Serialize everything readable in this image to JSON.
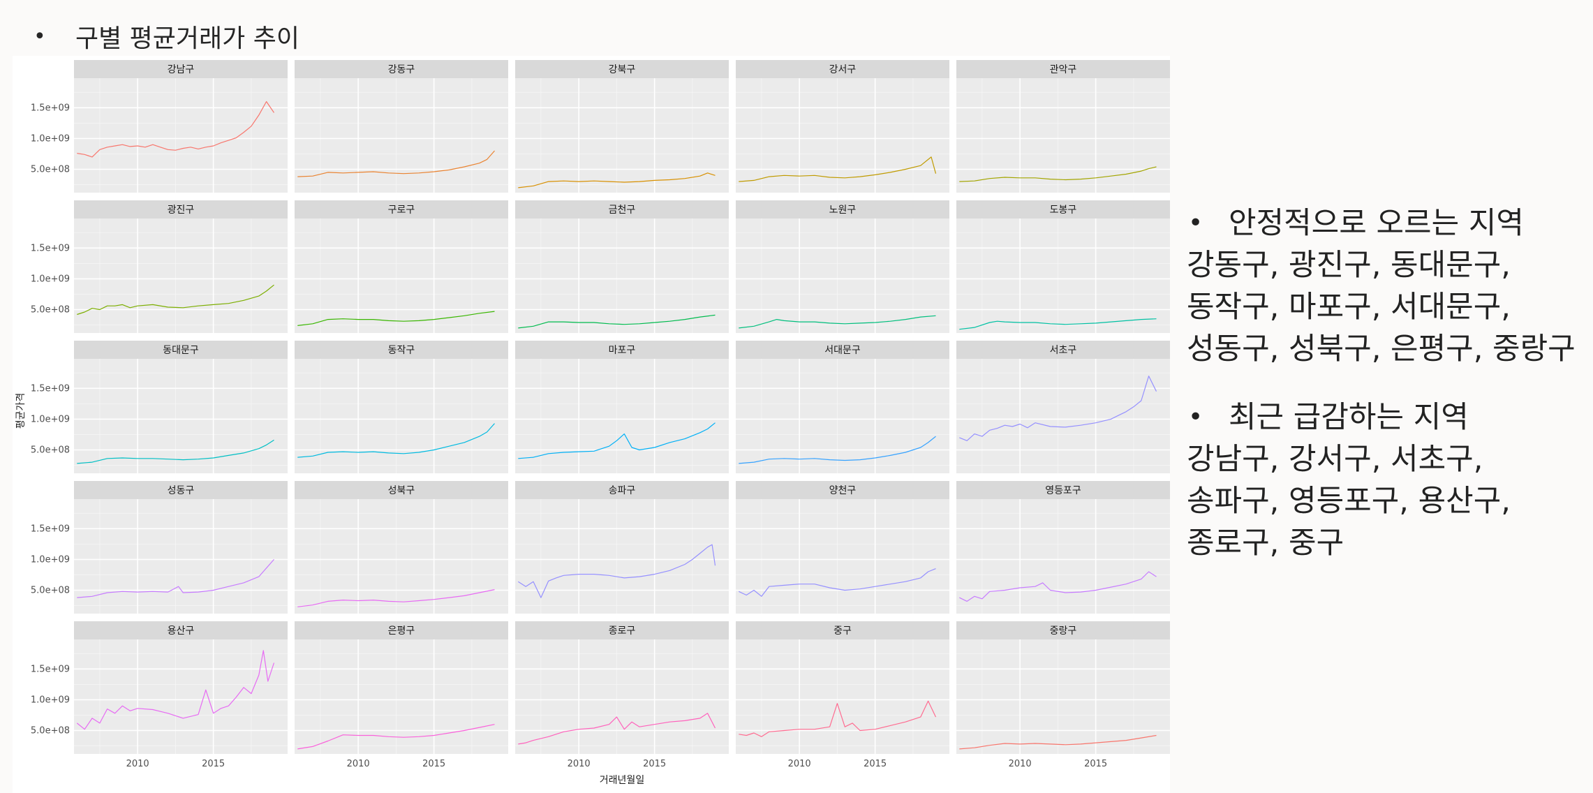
{
  "slide": {
    "title": "구별 평균거래가 추이",
    "bullet": "•"
  },
  "notes": {
    "rising": {
      "heading": "안정적으로 오르는 지역",
      "lines": [
        "강동구, 광진구, 동대문구,",
        "동작구, 마포구, 서대문구,",
        "성동구, 성북구, 은평구, 중랑구"
      ]
    },
    "falling": {
      "heading": "최근 급감하는 지역",
      "lines": [
        "강남구, 강서구, 서초구,",
        "송파구, 영등포구, 용산구,",
        "종로구, 중구"
      ]
    }
  },
  "chart_data": {
    "type": "line",
    "layout": "facet_wrap",
    "ncol": 5,
    "xlabel": "거래년월일",
    "ylabel": "평균가격",
    "xlim": [
      2005.8,
      2019.9
    ],
    "ylim": [
      120000000,
      1980000000
    ],
    "x_ticks": [
      2010,
      2015
    ],
    "x_tick_labels": [
      "2010",
      "2015"
    ],
    "y_ticks": [
      500000000,
      1000000000,
      1500000000
    ],
    "y_tick_labels": [
      "5.0e+08",
      "1.0e+09",
      "1.5e+09"
    ],
    "grid": true,
    "legend": "none",
    "series": [
      {
        "name": "강남구",
        "color": "#F8766D",
        "x": [
          2006,
          2006.5,
          2007,
          2007.5,
          2008,
          2008.5,
          2009,
          2009.5,
          2010,
          2010.5,
          2011,
          2011.5,
          2012,
          2012.5,
          2013,
          2013.5,
          2014,
          2014.5,
          2015,
          2015.5,
          2016,
          2016.5,
          2017,
          2017.5,
          2018,
          2018.5,
          2019
        ],
        "y": [
          760000000,
          740000000,
          700000000,
          820000000,
          860000000,
          880000000,
          900000000,
          870000000,
          880000000,
          860000000,
          900000000,
          860000000,
          820000000,
          810000000,
          840000000,
          860000000,
          830000000,
          860000000,
          880000000,
          930000000,
          970000000,
          1010000000,
          1100000000,
          1200000000,
          1380000000,
          1600000000,
          1420000000
        ]
      },
      {
        "name": "강동구",
        "color": "#EA8331",
        "x": [
          2006,
          2007,
          2008,
          2009,
          2010,
          2011,
          2012,
          2013,
          2014,
          2015,
          2016,
          2017,
          2018,
          2018.5,
          2019
        ],
        "y": [
          380000000,
          390000000,
          450000000,
          440000000,
          450000000,
          460000000,
          440000000,
          430000000,
          440000000,
          460000000,
          490000000,
          540000000,
          600000000,
          660000000,
          800000000
        ]
      },
      {
        "name": "강북구",
        "color": "#D89000",
        "x": [
          2006,
          2007,
          2008,
          2009,
          2010,
          2011,
          2012,
          2013,
          2014,
          2015,
          2016,
          2017,
          2018,
          2018.5,
          2019
        ],
        "y": [
          200000000,
          230000000,
          300000000,
          310000000,
          300000000,
          310000000,
          300000000,
          290000000,
          300000000,
          320000000,
          330000000,
          350000000,
          390000000,
          440000000,
          400000000
        ]
      },
      {
        "name": "강서구",
        "color": "#C09B00",
        "x": [
          2006,
          2007,
          2008,
          2009,
          2010,
          2011,
          2012,
          2013,
          2014,
          2015,
          2016,
          2017,
          2018,
          2018.7,
          2019
        ],
        "y": [
          300000000,
          320000000,
          380000000,
          400000000,
          390000000,
          400000000,
          370000000,
          360000000,
          380000000,
          410000000,
          450000000,
          500000000,
          560000000,
          700000000,
          430000000
        ]
      },
      {
        "name": "관악구",
        "color": "#A3A500",
        "x": [
          2006,
          2007,
          2008,
          2009,
          2010,
          2011,
          2012,
          2013,
          2014,
          2015,
          2016,
          2017,
          2018,
          2018.5,
          2019
        ],
        "y": [
          300000000,
          310000000,
          350000000,
          370000000,
          360000000,
          360000000,
          340000000,
          330000000,
          340000000,
          360000000,
          390000000,
          420000000,
          470000000,
          510000000,
          540000000
        ]
      },
      {
        "name": "광진구",
        "color": "#7CAE00",
        "x": [
          2006,
          2006.5,
          2007,
          2007.5,
          2008,
          2008.5,
          2009,
          2009.5,
          2010,
          2011,
          2012,
          2013,
          2014,
          2015,
          2016,
          2017,
          2018,
          2018.5,
          2019
        ],
        "y": [
          420000000,
          460000000,
          520000000,
          500000000,
          560000000,
          560000000,
          580000000,
          530000000,
          560000000,
          580000000,
          540000000,
          530000000,
          560000000,
          580000000,
          600000000,
          650000000,
          720000000,
          800000000,
          900000000
        ]
      },
      {
        "name": "구로구",
        "color": "#39B600",
        "x": [
          2006,
          2007,
          2008,
          2009,
          2010,
          2011,
          2012,
          2013,
          2014,
          2015,
          2016,
          2017,
          2018,
          2019
        ],
        "y": [
          240000000,
          270000000,
          340000000,
          350000000,
          340000000,
          340000000,
          320000000,
          310000000,
          320000000,
          340000000,
          370000000,
          400000000,
          440000000,
          470000000
        ]
      },
      {
        "name": "금천구",
        "color": "#00BB4E",
        "x": [
          2006,
          2007,
          2008,
          2009,
          2010,
          2011,
          2012,
          2013,
          2014,
          2015,
          2016,
          2017,
          2018,
          2019
        ],
        "y": [
          200000000,
          230000000,
          300000000,
          300000000,
          290000000,
          290000000,
          270000000,
          260000000,
          270000000,
          290000000,
          310000000,
          340000000,
          380000000,
          410000000
        ]
      },
      {
        "name": "노원구",
        "color": "#00BF7D",
        "x": [
          2006,
          2007,
          2008,
          2008.5,
          2009,
          2010,
          2011,
          2012,
          2013,
          2014,
          2015,
          2016,
          2017,
          2018,
          2019
        ],
        "y": [
          200000000,
          230000000,
          300000000,
          340000000,
          320000000,
          300000000,
          300000000,
          280000000,
          270000000,
          280000000,
          290000000,
          310000000,
          340000000,
          380000000,
          400000000
        ]
      },
      {
        "name": "도봉구",
        "color": "#00C1A3",
        "x": [
          2006,
          2007,
          2008,
          2008.5,
          2009,
          2010,
          2011,
          2012,
          2013,
          2014,
          2015,
          2016,
          2017,
          2018,
          2019
        ],
        "y": [
          180000000,
          210000000,
          290000000,
          310000000,
          300000000,
          290000000,
          290000000,
          270000000,
          260000000,
          270000000,
          280000000,
          300000000,
          320000000,
          340000000,
          350000000
        ]
      },
      {
        "name": "동대문구",
        "color": "#00BFC4",
        "x": [
          2006,
          2007,
          2008,
          2009,
          2010,
          2011,
          2012,
          2013,
          2014,
          2015,
          2016,
          2017,
          2018,
          2018.5,
          2019
        ],
        "y": [
          280000000,
          300000000,
          360000000,
          370000000,
          360000000,
          360000000,
          350000000,
          340000000,
          350000000,
          370000000,
          410000000,
          450000000,
          520000000,
          580000000,
          660000000
        ]
      },
      {
        "name": "동작구",
        "color": "#00BAE0",
        "x": [
          2006,
          2007,
          2008,
          2009,
          2010,
          2011,
          2012,
          2013,
          2014,
          2015,
          2016,
          2017,
          2018,
          2018.5,
          2019
        ],
        "y": [
          380000000,
          400000000,
          460000000,
          470000000,
          460000000,
          470000000,
          450000000,
          440000000,
          460000000,
          500000000,
          560000000,
          620000000,
          720000000,
          790000000,
          930000000
        ]
      },
      {
        "name": "마포구",
        "color": "#00B0F6",
        "x": [
          2006,
          2007,
          2008,
          2009,
          2010,
          2011,
          2012,
          2012.5,
          2013,
          2013.5,
          2014,
          2015,
          2016,
          2017,
          2018,
          2018.5,
          2019
        ],
        "y": [
          360000000,
          380000000,
          440000000,
          460000000,
          470000000,
          480000000,
          560000000,
          650000000,
          760000000,
          540000000,
          500000000,
          540000000,
          620000000,
          680000000,
          780000000,
          840000000,
          940000000
        ]
      },
      {
        "name": "서대문구",
        "color": "#35A2FF",
        "x": [
          2006,
          2007,
          2008,
          2009,
          2010,
          2011,
          2012,
          2013,
          2014,
          2015,
          2016,
          2017,
          2018,
          2018.5,
          2019
        ],
        "y": [
          280000000,
          300000000,
          350000000,
          360000000,
          350000000,
          360000000,
          340000000,
          330000000,
          340000000,
          370000000,
          410000000,
          460000000,
          540000000,
          620000000,
          720000000
        ]
      },
      {
        "name": "서초구",
        "color": "#9590FF",
        "x": [
          2006,
          2006.5,
          2007,
          2007.5,
          2008,
          2008.5,
          2009,
          2009.5,
          2010,
          2010.5,
          2011,
          2012,
          2013,
          2014,
          2015,
          2016,
          2016.5,
          2017,
          2017.5,
          2018,
          2018.5,
          2019
        ],
        "y": [
          700000000,
          650000000,
          760000000,
          720000000,
          820000000,
          850000000,
          900000000,
          880000000,
          920000000,
          860000000,
          940000000,
          880000000,
          870000000,
          900000000,
          940000000,
          1000000000,
          1060000000,
          1120000000,
          1200000000,
          1300000000,
          1700000000,
          1450000000
        ]
      },
      {
        "name": "성동구",
        "color": "#C77CFF",
        "x": [
          2006,
          2007,
          2008,
          2009,
          2010,
          2011,
          2012,
          2012.7,
          2013,
          2014,
          2015,
          2016,
          2017,
          2018,
          2018.5,
          2019
        ],
        "y": [
          380000000,
          400000000,
          460000000,
          480000000,
          470000000,
          480000000,
          470000000,
          560000000,
          460000000,
          470000000,
          500000000,
          560000000,
          620000000,
          720000000,
          860000000,
          1000000000
        ]
      },
      {
        "name": "성북구",
        "color": "#E76BF3",
        "x": [
          2006,
          2007,
          2008,
          2009,
          2010,
          2011,
          2012,
          2013,
          2014,
          2015,
          2016,
          2017,
          2018,
          2019
        ],
        "y": [
          230000000,
          260000000,
          320000000,
          340000000,
          330000000,
          340000000,
          320000000,
          310000000,
          330000000,
          350000000,
          380000000,
          410000000,
          460000000,
          510000000
        ]
      },
      {
        "name": "송파구",
        "color": "#9590FF",
        "x": [
          2006,
          2006.5,
          2007,
          2007.5,
          2008,
          2008.5,
          2009,
          2010,
          2011,
          2012,
          2013,
          2014,
          2015,
          2016,
          2017,
          2017.5,
          2018,
          2018.5,
          2018.8,
          2019
        ],
        "y": [
          640000000,
          560000000,
          640000000,
          380000000,
          650000000,
          700000000,
          740000000,
          760000000,
          760000000,
          740000000,
          700000000,
          720000000,
          760000000,
          820000000,
          920000000,
          1000000000,
          1100000000,
          1200000000,
          1240000000,
          900000000
        ]
      },
      {
        "name": "양천구",
        "color": "#9590FF",
        "x": [
          2006,
          2006.5,
          2007,
          2007.5,
          2008,
          2009,
          2010,
          2011,
          2012,
          2013,
          2014,
          2015,
          2016,
          2017,
          2018,
          2018.5,
          2019
        ],
        "y": [
          480000000,
          420000000,
          500000000,
          400000000,
          560000000,
          580000000,
          600000000,
          600000000,
          540000000,
          500000000,
          520000000,
          560000000,
          600000000,
          640000000,
          700000000,
          800000000,
          850000000
        ]
      },
      {
        "name": "영등포구",
        "color": "#C77CFF",
        "x": [
          2006,
          2006.5,
          2007,
          2007.5,
          2008,
          2009,
          2010,
          2011,
          2011.5,
          2012,
          2013,
          2014,
          2015,
          2016,
          2017,
          2018,
          2018.5,
          2019
        ],
        "y": [
          380000000,
          320000000,
          400000000,
          360000000,
          480000000,
          500000000,
          540000000,
          560000000,
          620000000,
          500000000,
          460000000,
          470000000,
          500000000,
          550000000,
          600000000,
          680000000,
          800000000,
          720000000
        ]
      },
      {
        "name": "용산구",
        "color": "#E76BF3",
        "x": [
          2006,
          2006.5,
          2007,
          2007.5,
          2008,
          2008.5,
          2009,
          2009.5,
          2010,
          2011,
          2012,
          2013,
          2014,
          2014.5,
          2015,
          2015.5,
          2016,
          2016.5,
          2017,
          2017.5,
          2018,
          2018.3,
          2018.6,
          2019
        ],
        "y": [
          620000000,
          520000000,
          700000000,
          620000000,
          850000000,
          780000000,
          900000000,
          820000000,
          860000000,
          840000000,
          780000000,
          700000000,
          760000000,
          1160000000,
          780000000,
          860000000,
          900000000,
          1040000000,
          1200000000,
          1100000000,
          1400000000,
          1800000000,
          1300000000,
          1600000000
        ]
      },
      {
        "name": "은평구",
        "color": "#FA62DB",
        "x": [
          2006,
          2007,
          2008,
          2009,
          2010,
          2011,
          2012,
          2013,
          2014,
          2015,
          2016,
          2017,
          2018,
          2019
        ],
        "y": [
          200000000,
          240000000,
          330000000,
          430000000,
          420000000,
          420000000,
          400000000,
          390000000,
          400000000,
          420000000,
          460000000,
          500000000,
          550000000,
          600000000
        ]
      },
      {
        "name": "종로구",
        "color": "#FF62BC",
        "x": [
          2006,
          2006.5,
          2007,
          2008,
          2009,
          2010,
          2011,
          2012,
          2012.5,
          2013,
          2013.5,
          2014,
          2015,
          2016,
          2017,
          2018,
          2018.5,
          2019
        ],
        "y": [
          280000000,
          300000000,
          340000000,
          400000000,
          480000000,
          520000000,
          540000000,
          600000000,
          720000000,
          520000000,
          640000000,
          560000000,
          600000000,
          640000000,
          660000000,
          700000000,
          780000000,
          540000000
        ]
      },
      {
        "name": "중구",
        "color": "#FF6C91",
        "x": [
          2006,
          2006.5,
          2007,
          2007.5,
          2008,
          2009,
          2010,
          2011,
          2012,
          2012.5,
          2013,
          2013.5,
          2014,
          2015,
          2016,
          2017,
          2018,
          2018.5,
          2019
        ],
        "y": [
          440000000,
          420000000,
          460000000,
          400000000,
          480000000,
          500000000,
          520000000,
          520000000,
          560000000,
          940000000,
          560000000,
          620000000,
          500000000,
          520000000,
          580000000,
          640000000,
          720000000,
          980000000,
          720000000
        ]
      },
      {
        "name": "중랑구",
        "color": "#F8766D",
        "x": [
          2006,
          2007,
          2008,
          2009,
          2010,
          2011,
          2012,
          2013,
          2014,
          2015,
          2016,
          2017,
          2018,
          2019
        ],
        "y": [
          200000000,
          220000000,
          260000000,
          290000000,
          280000000,
          290000000,
          280000000,
          270000000,
          280000000,
          300000000,
          320000000,
          340000000,
          380000000,
          420000000
        ]
      }
    ]
  }
}
